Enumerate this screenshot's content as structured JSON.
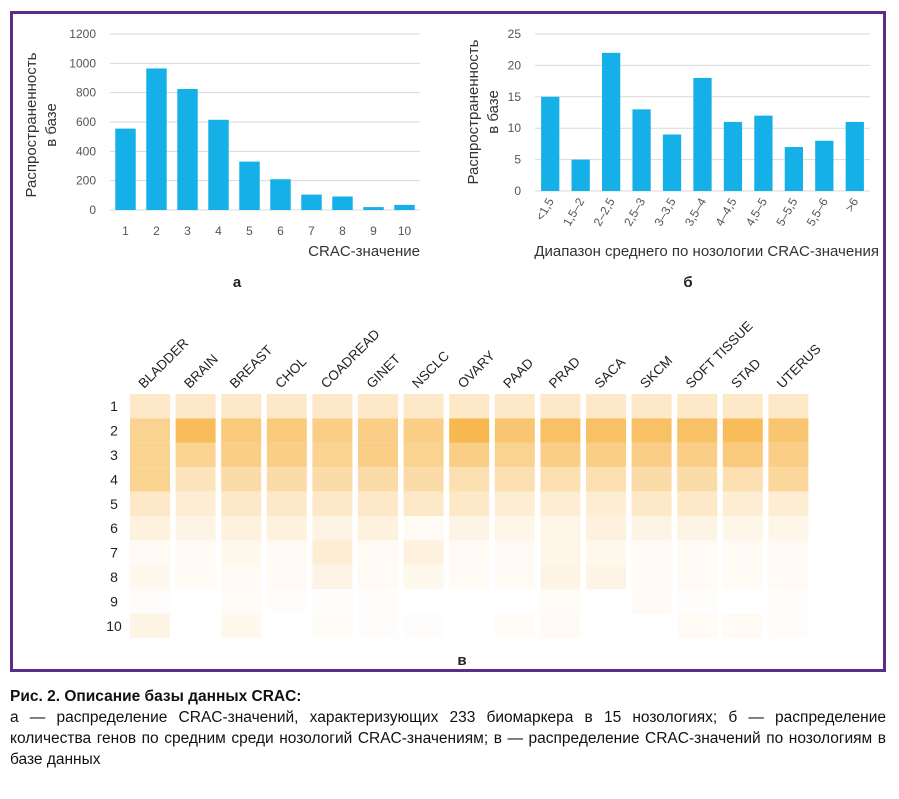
{
  "chart_data": [
    {
      "type": "bar",
      "panel": "а",
      "categories": [
        "1",
        "2",
        "3",
        "4",
        "5",
        "6",
        "7",
        "8",
        "9",
        "10"
      ],
      "values": [
        555,
        965,
        825,
        615,
        330,
        210,
        105,
        92,
        20,
        35
      ],
      "ylabel": "Распространенность в базе",
      "ylabel_lines": [
        "Распространенность",
        "в базе"
      ],
      "xlabel": "CRAC-значение",
      "yticks": [
        "0",
        "200",
        "400",
        "600",
        "800",
        "1000",
        "1200"
      ],
      "ylim": [
        0,
        1200
      ],
      "grid": true,
      "bar_color": "#16b0e8"
    },
    {
      "type": "bar",
      "panel": "б",
      "categories": [
        "<1,5",
        "1,5–2",
        "2–2,5",
        "2,5–3",
        "3–3,5",
        "3,5–4",
        "4–4,5",
        "4,5–5",
        "5–5,5",
        "5,5–6",
        ">6"
      ],
      "values": [
        15,
        5,
        22,
        13,
        9,
        18,
        11,
        12,
        7,
        8,
        11
      ],
      "ylabel": "Распространенность в базе",
      "ylabel_lines": [
        "Распространенность",
        "в базе"
      ],
      "xlabel": "Диапазон среднего по нозологии CRAC-значения",
      "yticks": [
        "0",
        "5",
        "10",
        "15",
        "20",
        "25"
      ],
      "ylim": [
        0,
        25
      ],
      "grid": true,
      "bar_color": "#16b0e8"
    },
    {
      "type": "heatmap",
      "panel": "в",
      "columns": [
        "BLADDER",
        "BRAIN",
        "BREAST",
        "CHOL",
        "COADREAD",
        "GINET",
        "NSCLC",
        "OVARY",
        "PAAD",
        "PRAD",
        "SACA",
        "SKCM",
        "SOFT TISSUE",
        "STAD",
        "UTERUS"
      ],
      "rows": [
        "1",
        "2",
        "3",
        "4",
        "5",
        "6",
        "7",
        "8",
        "9",
        "10"
      ],
      "values": [
        [
          0.25,
          0.25,
          0.25,
          0.25,
          0.25,
          0.25,
          0.25,
          0.25,
          0.25,
          0.25,
          0.25,
          0.25,
          0.25,
          0.25,
          0.25
        ],
        [
          0.5,
          0.75,
          0.6,
          0.6,
          0.55,
          0.55,
          0.55,
          0.8,
          0.65,
          0.7,
          0.7,
          0.7,
          0.7,
          0.75,
          0.65
        ],
        [
          0.5,
          0.5,
          0.55,
          0.55,
          0.5,
          0.55,
          0.5,
          0.55,
          0.5,
          0.55,
          0.55,
          0.55,
          0.55,
          0.6,
          0.55
        ],
        [
          0.5,
          0.3,
          0.4,
          0.4,
          0.4,
          0.4,
          0.4,
          0.35,
          0.35,
          0.35,
          0.35,
          0.4,
          0.4,
          0.35,
          0.45
        ],
        [
          0.25,
          0.2,
          0.25,
          0.25,
          0.25,
          0.25,
          0.25,
          0.25,
          0.2,
          0.2,
          0.2,
          0.25,
          0.25,
          0.2,
          0.2
        ],
        [
          0.15,
          0.12,
          0.15,
          0.15,
          0.12,
          0.15,
          0.05,
          0.12,
          0.1,
          0.1,
          0.15,
          0.12,
          0.12,
          0.1,
          0.1
        ],
        [
          0.05,
          0.05,
          0.08,
          0.05,
          0.2,
          0.05,
          0.15,
          0.05,
          0.05,
          0.1,
          0.08,
          0.05,
          0.05,
          0.05,
          0.05
        ],
        [
          0.08,
          0.05,
          0.05,
          0.05,
          0.12,
          0.05,
          0.08,
          0.05,
          0.05,
          0.12,
          0.12,
          0.05,
          0.05,
          0.05,
          0.05
        ],
        [
          0.02,
          0.0,
          0.03,
          0.02,
          0.02,
          0.02,
          0.0,
          0.0,
          0.0,
          0.03,
          0.0,
          0.05,
          0.02,
          0.0,
          0.02
        ],
        [
          0.12,
          0.0,
          0.08,
          0.0,
          0.03,
          0.02,
          0.02,
          0.0,
          0.03,
          0.05,
          0.0,
          0.0,
          0.05,
          0.05,
          0.02
        ]
      ],
      "color_low": "#ffffff",
      "color_high": "#f5a623"
    }
  ],
  "caption": {
    "title": "Рис. 2. Описание базы данных CRAC:",
    "body": "а — распределение CRAC-значений, характеризующих 233 биомаркера в 15 нозологиях; б — распределение количества генов по средним среди нозологий CRAC-значениям; в — распределение CRAC-значений по нозологиям в базе данных"
  }
}
